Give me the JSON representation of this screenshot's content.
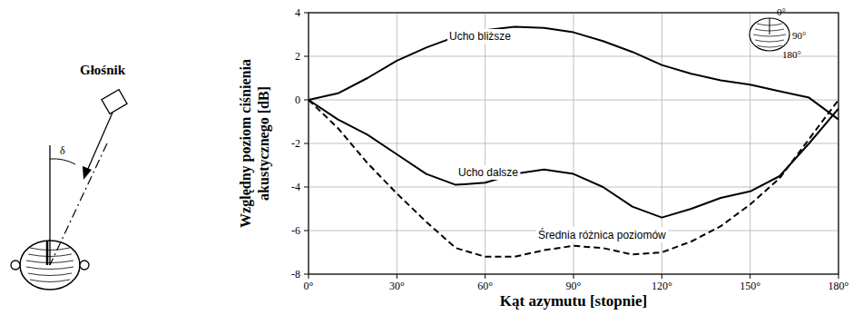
{
  "chart_data": {
    "type": "line",
    "x_label": "Kąt azymutu [stopnie]",
    "y_label": [
      "Względny poziom ciśnienia",
      "akustycznego [dB]"
    ],
    "annotations": [
      "Głośnik",
      "δ",
      "0°",
      "90°",
      "180°"
    ],
    "x": [
      0,
      10,
      20,
      30,
      40,
      50,
      60,
      70,
      80,
      90,
      100,
      110,
      120,
      130,
      140,
      150,
      160,
      170,
      180
    ],
    "xlim": [
      0,
      180
    ],
    "xticks": [
      {
        "value": 0,
        "label": "0°"
      },
      {
        "value": 30,
        "label": "30°"
      },
      {
        "value": 60,
        "label": "60°"
      },
      {
        "value": 90,
        "label": "90°"
      },
      {
        "value": 120,
        "label": "120°"
      },
      {
        "value": 150,
        "label": "150°"
      },
      {
        "value": 180,
        "label": "180°"
      }
    ],
    "ylim": [
      -8,
      4
    ],
    "yticks": [
      -8,
      -6,
      -4,
      -2,
      0,
      2,
      4
    ],
    "grid": true,
    "series": [
      {
        "name": "Ucho bliższe",
        "color": "#000000",
        "line_style": "solid",
        "values": [
          0,
          0.3,
          1.0,
          1.8,
          2.4,
          2.9,
          3.2,
          3.35,
          3.3,
          3.1,
          2.7,
          2.2,
          1.6,
          1.2,
          0.9,
          0.7,
          0.4,
          0.1,
          -0.9
        ]
      },
      {
        "name": "Ucho dalsze",
        "color": "#000000",
        "line_style": "solid",
        "values": [
          0,
          -0.9,
          -1.6,
          -2.5,
          -3.4,
          -3.9,
          -3.8,
          -3.4,
          -3.2,
          -3.4,
          -4.0,
          -4.9,
          -5.4,
          -5.0,
          -4.5,
          -4.2,
          -3.5,
          -2.0,
          -0.4
        ]
      },
      {
        "name": "Średnia różnica poziomów",
        "color": "#000000",
        "line_style": "dashed",
        "values": [
          0,
          -1.3,
          -2.9,
          -4.3,
          -5.6,
          -6.8,
          -7.2,
          -7.2,
          -6.9,
          -6.7,
          -6.8,
          -7.1,
          -7.0,
          -6.5,
          -5.8,
          -4.8,
          -3.6,
          -1.8,
          0
        ]
      }
    ]
  }
}
